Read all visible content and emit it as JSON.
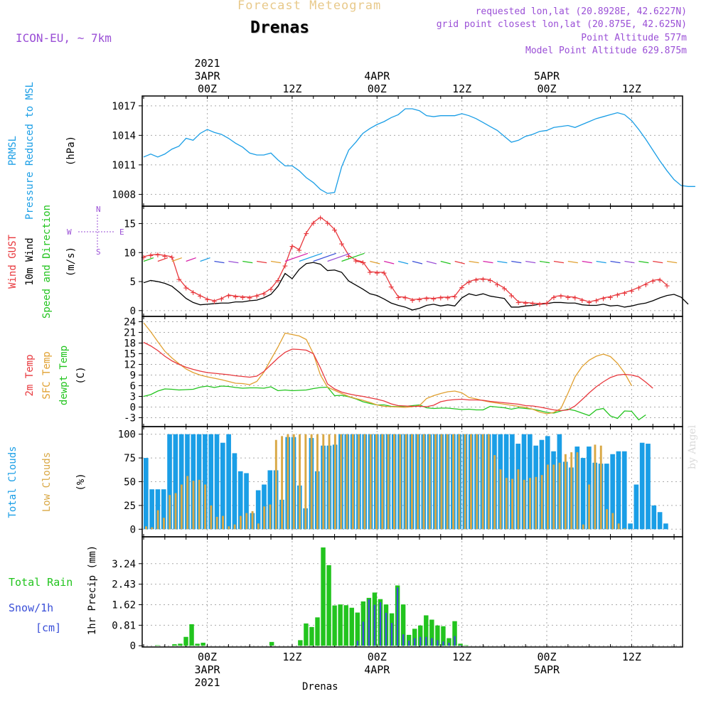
{
  "header": {
    "title": "Forecast Meteogram",
    "station": "Drenas",
    "model": "ICON-EU, ~ 7km",
    "requested": "requested lon,lat (20.8928E, 42.6227N)",
    "grid_point": "grid point closest lon,lat (20.875E, 42.625N)",
    "point_altitude": "Point Altitude 577m",
    "model_altitude": "Model Point Altitude 629.875m"
  },
  "footer": "Drenas",
  "watermark": "by Angel",
  "colors": {
    "pressure": "#1a9ee6",
    "gust": "#e8383d",
    "wind10": "#000000",
    "temp2m": "#e8383d",
    "sfc_temp": "#e0a030",
    "dewpt": "#22c41e",
    "total_cloud": "#1a9ee6",
    "low_cloud": "#d9a845",
    "rain": "#22c41e",
    "snow": "#3a4fd8",
    "purple": "#9a4fd6"
  },
  "time_axis": {
    "top_labels": [
      {
        "t": 9,
        "lines": [
          "2021",
          "3APR",
          "00Z"
        ]
      },
      {
        "t": 21,
        "lines": [
          "12Z"
        ]
      },
      {
        "t": 33,
        "lines": [
          "4APR",
          "00Z"
        ]
      },
      {
        "t": 45,
        "lines": [
          "12Z"
        ]
      },
      {
        "t": 57,
        "lines": [
          "5APR",
          "00Z"
        ]
      },
      {
        "t": 69,
        "lines": [
          "12Z"
        ]
      }
    ],
    "bottom_labels": [
      {
        "t": 9,
        "lines": [
          "00Z",
          "3APR",
          "2021"
        ]
      },
      {
        "t": 21,
        "lines": [
          "12Z"
        ]
      },
      {
        "t": 33,
        "lines": [
          "00Z",
          "4APR"
        ]
      },
      {
        "t": 45,
        "lines": [
          "12Z"
        ]
      },
      {
        "t": 57,
        "lines": [
          "00Z",
          "5APR"
        ]
      },
      {
        "t": 69,
        "lines": [
          "12Z"
        ]
      }
    ]
  },
  "panels": {
    "pressure": {
      "labels": [
        "PRMSL",
        "Pressure Reduced to MSL",
        "(hPa)"
      ],
      "ticks": [
        "1008",
        "1011",
        "1014",
        "1017"
      ]
    },
    "wind": {
      "labels": [
        "Wind GUST",
        "10m Wind",
        "Speed and Direction",
        "(m/s)"
      ],
      "ticks": [
        "0",
        "5",
        "10",
        "15"
      ],
      "compass": {
        "n": "N",
        "s": "S",
        "w": "W",
        "e": "E"
      }
    },
    "temp": {
      "labels": [
        "2m Temp",
        "SFC Temp",
        "dewpt Temp",
        "(C)"
      ],
      "ticks": [
        "-3",
        "0",
        "3",
        "6",
        "9",
        "12",
        "15",
        "18",
        "21",
        "24"
      ]
    },
    "cloud": {
      "labels": [
        "Total Clouds",
        "Low Clouds",
        "(%)"
      ],
      "ticks": [
        "0",
        "25",
        "50",
        "75",
        "100"
      ]
    },
    "precip": {
      "labels": [
        "Total  Rain",
        "Snow/1h",
        "[cm]",
        "1hr Precip (mm)"
      ],
      "ticks": [
        "0",
        "0.81",
        "1.62",
        "2.43",
        "3.24"
      ]
    }
  },
  "chart_data": {
    "type": "meteogram",
    "time_step_hours": 1,
    "time_start": "2021-04-02 15Z",
    "pressure_hpa": [
      1011.8,
      1012.1,
      1011.8,
      1012.1,
      1012.6,
      1012.9,
      1013.7,
      1013.5,
      1014.2,
      1014.6,
      1014.3,
      1014.1,
      1013.7,
      1013.2,
      1012.8,
      1012.2,
      1012.0,
      1012.0,
      1012.2,
      1011.5,
      1010.9,
      1010.9,
      1010.4,
      1009.7,
      1009.2,
      1008.5,
      1008.1,
      1008.2,
      1010.8,
      1012.5,
      1013.3,
      1014.2,
      1014.7,
      1015.1,
      1015.4,
      1015.8,
      1016.1,
      1016.7,
      1016.7,
      1016.5,
      1016.0,
      1015.9,
      1016.0,
      1016.0,
      1016.0,
      1016.2,
      1016.0,
      1015.7,
      1015.3,
      1014.9,
      1014.5,
      1013.9,
      1013.3,
      1013.5,
      1013.9,
      1014.1,
      1014.4,
      1014.5,
      1014.8,
      1014.9,
      1015.0,
      1014.8,
      1015.1,
      1015.4,
      1015.7,
      1015.9,
      1016.1,
      1016.3,
      1016.1,
      1015.5,
      1014.6,
      1013.6,
      1012.5,
      1011.4,
      1010.4,
      1009.5,
      1008.9,
      1008.8,
      1008.8
    ],
    "gust_ms": [
      9.3,
      9.6,
      9.7,
      9.5,
      9.3,
      5.5,
      4.0,
      3.2,
      2.6,
      2.0,
      1.7,
      2.1,
      2.7,
      2.5,
      2.4,
      2.3,
      2.6,
      3.0,
      3.8,
      5.3,
      7.8,
      11.2,
      10.5,
      13.4,
      15.2,
      16.1,
      15.2,
      14.0,
      11.6,
      9.5,
      8.7,
      8.4,
      6.7,
      6.6,
      6.6,
      4.2,
      2.4,
      2.3,
      1.9,
      2.0,
      2.2,
      2.1,
      2.3,
      2.3,
      2.5,
      4.1,
      5.0,
      5.4,
      5.5,
      5.3,
      4.6,
      3.9,
      2.7,
      1.5,
      1.4,
      1.3,
      1.2,
      1.3,
      2.4,
      2.6,
      2.4,
      2.3,
      1.9,
      1.5,
      1.8,
      2.2,
      2.4,
      2.8,
      3.1,
      3.5,
      4.0,
      4.6,
      5.2,
      5.4,
      4.4
    ],
    "wind10_ms": [
      4.8,
      5.2,
      5.0,
      4.7,
      4.2,
      3.2,
      2.1,
      1.4,
      1.0,
      1.1,
      1.2,
      1.3,
      1.3,
      1.5,
      1.5,
      1.7,
      1.8,
      2.2,
      2.8,
      4.2,
      6.4,
      5.5,
      7.1,
      8.1,
      8.3,
      8.0,
      6.9,
      7.0,
      6.6,
      5.1,
      4.4,
      3.7,
      2.9,
      2.6,
      2.0,
      1.3,
      0.9,
      0.6,
      0.1,
      0.4,
      0.9,
      1.1,
      0.8,
      1.0,
      0.8,
      2.2,
      2.9,
      2.6,
      2.9,
      2.5,
      2.3,
      2.1,
      0.6,
      0.6,
      0.8,
      0.9,
      1.1,
      1.2,
      1.4,
      1.4,
      1.3,
      1.3,
      1.0,
      0.9,
      0.9,
      1.1,
      0.8,
      0.9,
      0.6,
      0.8,
      1.1,
      1.3,
      1.7,
      2.2,
      2.6,
      2.8,
      2.3,
      1.1
    ],
    "temp2m_c": [
      18.2,
      17.2,
      15.9,
      14.3,
      13.0,
      12.0,
      11.2,
      10.6,
      10.1,
      9.7,
      9.5,
      9.3,
      9.1,
      8.8,
      8.6,
      8.4,
      8.7,
      10.0,
      11.9,
      13.8,
      15.4,
      16.3,
      16.2,
      16.0,
      15.0,
      11.0,
      6.5,
      5.1,
      4.2,
      3.7,
      3.3,
      3.0,
      2.6,
      2.2,
      1.7,
      0.9,
      0.4,
      0.3,
      0.2,
      0.2,
      0.1,
      0.5,
      1.5,
      1.9,
      2.1,
      2.2,
      2.0,
      2.0,
      1.9,
      1.6,
      1.4,
      1.2,
      1.0,
      0.8,
      0.4,
      0.3,
      0.0,
      -0.4,
      -0.8,
      -1.0,
      -0.8,
      0.3,
      2.1,
      4.0,
      5.7,
      7.1,
      8.3,
      9.0,
      9.2,
      9.0,
      8.5,
      7.0,
      5.3
    ],
    "sfc_temp_c": [
      23.7,
      21.2,
      18.4,
      15.7,
      13.8,
      12.2,
      10.7,
      9.7,
      9.0,
      8.5,
      8.1,
      7.7,
      7.2,
      6.7,
      6.6,
      6.3,
      7.2,
      9.8,
      13.4,
      16.9,
      20.8,
      20.4,
      20.0,
      19.0,
      15.0,
      9.0,
      5.6,
      4.7,
      3.8,
      3.0,
      2.4,
      1.9,
      1.3,
      0.6,
      0.2,
      0.1,
      0.0,
      -0.1,
      0.1,
      0.4,
      2.4,
      3.2,
      3.8,
      4.3,
      4.5,
      4.0,
      2.7,
      2.3,
      1.8,
      1.4,
      1.1,
      0.8,
      0.5,
      0.2,
      -0.1,
      -0.6,
      -1.4,
      -1.9,
      -1.5,
      -0.4,
      3.9,
      8.5,
      11.4,
      13.2,
      14.3,
      14.9,
      14.2,
      12.3,
      9.6,
      6.0
    ],
    "dewpt_c": [
      3.0,
      3.5,
      4.5,
      5.1,
      5.0,
      4.8,
      4.9,
      5.0,
      5.6,
      5.9,
      5.5,
      5.9,
      5.8,
      5.5,
      5.3,
      5.4,
      5.4,
      5.3,
      5.7,
      4.6,
      4.8,
      4.6,
      4.7,
      4.8,
      5.2,
      5.5,
      5.6,
      3.2,
      3.3,
      2.9,
      2.3,
      1.5,
      1.0,
      0.6,
      0.6,
      0.2,
      0.1,
      0.2,
      0.4,
      0.6,
      -0.2,
      -0.4,
      -0.3,
      -0.3,
      -0.5,
      -0.7,
      -0.6,
      -0.8,
      -0.8,
      0.2,
      0.0,
      -0.2,
      -0.6,
      -0.2,
      -0.4,
      -0.6,
      -1.0,
      -1.5,
      -1.7,
      -1.1,
      -0.6,
      -1.0,
      -1.7,
      -2.4,
      -0.8,
      -0.4,
      -2.5,
      -3.2,
      -1.1,
      -1.2,
      -3.6,
      -2.2
    ],
    "total_cloud_pct": [
      75,
      42,
      42,
      42,
      100,
      100,
      100,
      100,
      100,
      100,
      100,
      100,
      100,
      91,
      100,
      80,
      61,
      59,
      17,
      41,
      47,
      62,
      62,
      31,
      97,
      97,
      46,
      22,
      96,
      61,
      88,
      88,
      89,
      100,
      100,
      100,
      100,
      100,
      100,
      100,
      100,
      100,
      100,
      100,
      100,
      100,
      100,
      100,
      100,
      100,
      100,
      100,
      100,
      100,
      100,
      100,
      100,
      100,
      100,
      100,
      100,
      100,
      100,
      90,
      100,
      100,
      88,
      94,
      98,
      82,
      100,
      71,
      65,
      87,
      75,
      87,
      70,
      69,
      69,
      79,
      82,
      82,
      6,
      47,
      91,
      90,
      25,
      18,
      6,
      0,
      0
    ],
    "low_cloud_pct": [
      3,
      2,
      20,
      12,
      36,
      38,
      47,
      56,
      51,
      52,
      47,
      25,
      13,
      14,
      3,
      5,
      14,
      17,
      19,
      6,
      24,
      26,
      94,
      98,
      100,
      100,
      100,
      100,
      100,
      100,
      100,
      100,
      100,
      100,
      100,
      100,
      100,
      100,
      100,
      100,
      100,
      100,
      100,
      100,
      100,
      100,
      100,
      100,
      100,
      100,
      100,
      100,
      100,
      100,
      100,
      100,
      100,
      100,
      100,
      78,
      63,
      54,
      53,
      63,
      52,
      54,
      55,
      57,
      68,
      68,
      70,
      79,
      81,
      81,
      5,
      47,
      89,
      88,
      21,
      17,
      6,
      1,
      0
    ],
    "rain_mm": [
      0,
      0,
      0.02,
      0,
      0,
      0.06,
      0.08,
      0.35,
      0.85,
      0.08,
      0.12,
      0,
      0,
      0,
      0,
      0,
      0,
      0,
      0,
      0,
      0,
      0,
      0.15,
      0,
      0,
      0,
      0,
      0.22,
      0.88,
      0.74,
      1.12,
      3.88,
      3.18,
      1.59,
      1.63,
      1.6,
      1.5,
      1.31,
      1.75,
      1.89,
      2.1,
      1.84,
      1.63,
      1.28,
      2.38,
      1.63,
      0.43,
      0.67,
      0.8,
      1.2,
      1.03,
      0.8,
      0.77,
      0.3,
      0.97,
      0.08,
      0.02,
      0,
      0,
      0,
      0,
      0,
      0,
      0,
      0,
      0,
      0,
      0,
      0,
      0,
      0,
      0,
      0,
      0,
      0,
      0,
      0,
      0,
      0,
      0,
      0,
      0,
      0,
      0,
      0,
      0,
      0,
      0,
      0,
      0,
      0,
      0,
      0,
      0
    ],
    "snow_cm": [
      0,
      0,
      0,
      0,
      0,
      0,
      0,
      0,
      0,
      0,
      0,
      0,
      0,
      0,
      0,
      0,
      0,
      0,
      0,
      0,
      0,
      0,
      0,
      0,
      0,
      0,
      0,
      0,
      0,
      0,
      0,
      0,
      0,
      0,
      0,
      0,
      0,
      0.2,
      0.95,
      1.83,
      1.62,
      1.72,
      1.3,
      0.9,
      2.3,
      0.45,
      0.2,
      0.3,
      0.35,
      0.35,
      0.3,
      0.22,
      0.17,
      0.12,
      0.38,
      0.02,
      0,
      0,
      0,
      0,
      0,
      0,
      0,
      0,
      0,
      0,
      0,
      0,
      0,
      0,
      0,
      0,
      0,
      0,
      0,
      0,
      0,
      0,
      0,
      0,
      0,
      0,
      0,
      0,
      0,
      0,
      0,
      0,
      0,
      0,
      0,
      0,
      0,
      0
    ]
  }
}
